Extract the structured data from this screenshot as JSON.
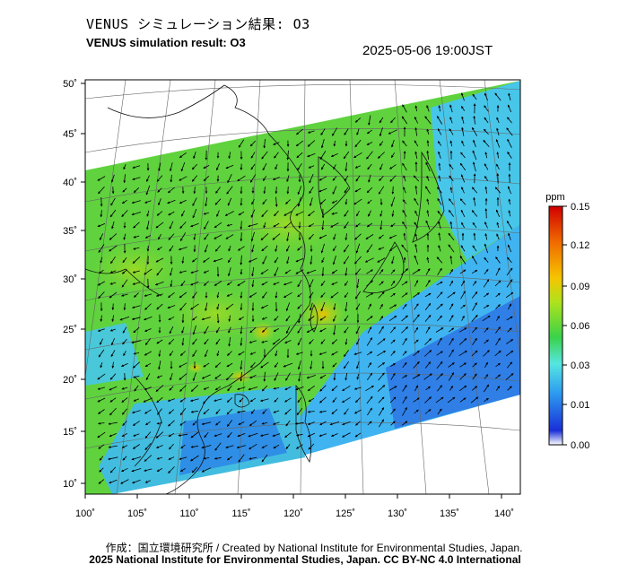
{
  "header": {
    "title_jp": "VENUS シミュレーション結果: O3",
    "title_en": "VENUS simulation result: O3",
    "timestamp": "2025-05-06 19:00JST"
  },
  "map": {
    "lon_labels": [
      "100˚",
      "105˚",
      "110˚",
      "115˚",
      "120˚",
      "125˚",
      "130˚",
      "135˚",
      "140˚"
    ],
    "lat_labels": [
      "50˚",
      "45˚",
      "40˚",
      "35˚",
      "30˚",
      "25˚",
      "20˚",
      "15˚",
      "10˚"
    ]
  },
  "colorbar": {
    "unit": "ppm",
    "labels": [
      "0.15",
      "0.12",
      "0.09",
      "0.06",
      "0.03",
      "0.01",
      "0.00"
    ],
    "colors": [
      "#ffffff",
      "#1a2fd8",
      "#2e9df0",
      "#56e6e0",
      "#3ad24a",
      "#b0e21c",
      "#f5c400",
      "#f06a00",
      "#d00000"
    ]
  },
  "footer": {
    "credit_line1": "作成：国立環境研究所 / Created by National Institute for Environmental Studies, Japan.",
    "credit_line2": "2025 National Institute for Environmental Studies, Japan. CC BY-NC 4.0 International"
  }
}
